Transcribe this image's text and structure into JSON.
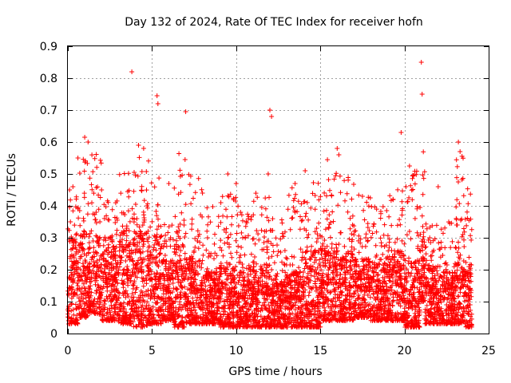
{
  "chart_data": {
    "type": "scatter",
    "title": "Day 132 of 2024, Rate Of TEC Index for receiver hofn",
    "xlabel": "GPS time / hours",
    "ylabel": "ROTI / TECUs",
    "xlim": [
      0,
      25
    ],
    "ylim": [
      0,
      0.9
    ],
    "x_ticks": [
      0,
      5,
      10,
      15,
      20,
      25
    ],
    "y_ticks": [
      0,
      0.1,
      0.2,
      0.3,
      0.4,
      0.5,
      0.6,
      0.7,
      0.8,
      0.9
    ],
    "x_tick_labels": [
      "0",
      "5",
      "10",
      "15",
      "20",
      "25"
    ],
    "y_tick_labels": [
      "0",
      "0.1",
      "0.2",
      "0.3",
      "0.4",
      "0.5",
      "0.6",
      "0.7",
      "0.8",
      "0.9"
    ],
    "grid": true,
    "marker": "plus",
    "color": "#ff0000",
    "series": [
      {
        "x": [
          0.05,
          0.15,
          0.3,
          0.5,
          0.7,
          0.9,
          1.1,
          1.3,
          1.5,
          1.7,
          1.9,
          2.1,
          2.3,
          2.5,
          2.7,
          2.9,
          3.1,
          3.3,
          3.5,
          3.7,
          3.9,
          4.1,
          4.3,
          4.5,
          4.7,
          4.9,
          5.1,
          5.3,
          5.5,
          5.7,
          5.9,
          6.1,
          6.3,
          6.5,
          6.7,
          6.9,
          7.1,
          7.3,
          7.5,
          7.7,
          7.9,
          8.1,
          8.3,
          8.5,
          8.7,
          8.9,
          9.1,
          9.3,
          9.5,
          9.7,
          9.9,
          10.1,
          10.3,
          10.5,
          10.7,
          10.9,
          11.1,
          11.3,
          11.5,
          11.7,
          11.9,
          12.1,
          12.3,
          12.5,
          12.7,
          12.9,
          13.1,
          13.3,
          13.5,
          13.7,
          13.9,
          14.1,
          14.3,
          14.5,
          14.7,
          14.9,
          15.1,
          15.3,
          15.5,
          15.7,
          15.9,
          16.1,
          16.3,
          16.5,
          16.7,
          16.9,
          17.1,
          17.3,
          17.5,
          17.7,
          17.9,
          18.1,
          18.3,
          18.5,
          18.7,
          18.9,
          19.1,
          19.3,
          19.5,
          19.7,
          19.9,
          20.1,
          20.3,
          20.5,
          20.7,
          20.9,
          21.1,
          21.3,
          21.5,
          21.7,
          21.9,
          22.1,
          22.3,
          22.5,
          22.7,
          22.9,
          23.1,
          23.3,
          23.5,
          23.7,
          23.9,
          3.8,
          5.3,
          5.35,
          7.0,
          12.0,
          21.0,
          21.05,
          19.8,
          23.2,
          1.0,
          1.2,
          4.2,
          4.5,
          16.0,
          16.1,
          23.3,
          20.3,
          12.1,
          10.0,
          14.1,
          9.5,
          6.0,
          2.0,
          0.1,
          11.9,
          17.5,
          8.0,
          13.5,
          22.0,
          0.6
        ],
        "y": [
          0.12,
          0.35,
          0.46,
          0.2,
          0.26,
          0.1,
          0.31,
          0.22,
          0.29,
          0.18,
          0.35,
          0.25,
          0.16,
          0.3,
          0.21,
          0.14,
          0.27,
          0.19,
          0.33,
          0.24,
          0.15,
          0.36,
          0.12,
          0.28,
          0.4,
          0.2,
          0.13,
          0.31,
          0.25,
          0.11,
          0.18,
          0.3,
          0.22,
          0.14,
          0.26,
          0.34,
          0.09,
          0.21,
          0.16,
          0.29,
          0.12,
          0.08,
          0.19,
          0.25,
          0.14,
          0.07,
          0.22,
          0.1,
          0.3,
          0.13,
          0.2,
          0.06,
          0.27,
          0.11,
          0.18,
          0.09,
          0.24,
          0.14,
          0.08,
          0.32,
          0.12,
          0.2,
          0.07,
          0.15,
          0.1,
          0.26,
          0.13,
          0.08,
          0.19,
          0.11,
          0.23,
          0.09,
          0.31,
          0.14,
          0.2,
          0.12,
          0.26,
          0.16,
          0.33,
          0.1,
          0.22,
          0.28,
          0.13,
          0.19,
          0.09,
          0.25,
          0.15,
          0.21,
          0.11,
          0.3,
          0.17,
          0.08,
          0.24,
          0.14,
          0.2,
          0.12,
          0.27,
          0.1,
          0.18,
          0.22,
          0.13,
          0.09,
          0.32,
          0.15,
          0.2,
          0.07,
          0.23,
          0.12,
          0.3,
          0.1,
          0.16,
          0.21,
          0.13,
          0.09,
          0.19,
          0.11,
          0.34,
          0.14,
          0.08,
          0.12,
          0.09,
          0.82,
          0.745,
          0.72,
          0.695,
          0.7,
          0.85,
          0.75,
          0.63,
          0.6,
          0.615,
          0.6,
          0.59,
          0.58,
          0.58,
          0.56,
          0.57,
          0.525,
          0.68,
          0.47,
          0.51,
          0.5,
          0.47,
          0.45,
          0.45,
          0.5,
          0.43,
          0.44,
          0.47,
          0.46,
          0.55
        ]
      }
    ],
    "density_segments": [
      [
        0.0,
        0.6,
        0.03,
        0.28,
        0.46
      ],
      [
        0.6,
        1.2,
        0.05,
        0.3,
        0.55
      ],
      [
        1.2,
        2.0,
        0.06,
        0.3,
        0.58
      ],
      [
        2.0,
        3.0,
        0.04,
        0.28,
        0.42
      ],
      [
        3.0,
        3.9,
        0.03,
        0.3,
        0.52
      ],
      [
        3.9,
        4.8,
        0.02,
        0.32,
        0.58
      ],
      [
        4.8,
        5.6,
        0.03,
        0.28,
        0.5
      ],
      [
        5.6,
        6.3,
        0.04,
        0.22,
        0.38
      ],
      [
        6.3,
        7.0,
        0.02,
        0.28,
        0.58
      ],
      [
        7.0,
        8.0,
        0.03,
        0.22,
        0.5
      ],
      [
        8.0,
        9.0,
        0.03,
        0.18,
        0.4
      ],
      [
        9.0,
        10.0,
        0.02,
        0.2,
        0.44
      ],
      [
        10.0,
        11.0,
        0.02,
        0.18,
        0.4
      ],
      [
        11.0,
        12.0,
        0.02,
        0.2,
        0.44
      ],
      [
        12.0,
        13.0,
        0.02,
        0.16,
        0.36
      ],
      [
        13.0,
        14.0,
        0.02,
        0.18,
        0.46
      ],
      [
        14.0,
        15.0,
        0.02,
        0.24,
        0.48
      ],
      [
        15.0,
        16.0,
        0.04,
        0.26,
        0.58
      ],
      [
        16.0,
        17.0,
        0.04,
        0.24,
        0.5
      ],
      [
        17.0,
        18.0,
        0.05,
        0.22,
        0.44
      ],
      [
        18.0,
        19.0,
        0.04,
        0.22,
        0.4
      ],
      [
        19.0,
        20.0,
        0.04,
        0.24,
        0.46
      ],
      [
        20.0,
        20.9,
        0.02,
        0.22,
        0.52
      ],
      [
        20.9,
        21.2,
        0.1,
        0.3,
        0.58
      ],
      [
        21.2,
        22.0,
        0.03,
        0.2,
        0.36
      ],
      [
        22.0,
        23.0,
        0.03,
        0.18,
        0.36
      ],
      [
        23.0,
        23.6,
        0.03,
        0.28,
        0.6
      ],
      [
        23.6,
        24.0,
        0.02,
        0.2,
        0.46
      ]
    ]
  }
}
